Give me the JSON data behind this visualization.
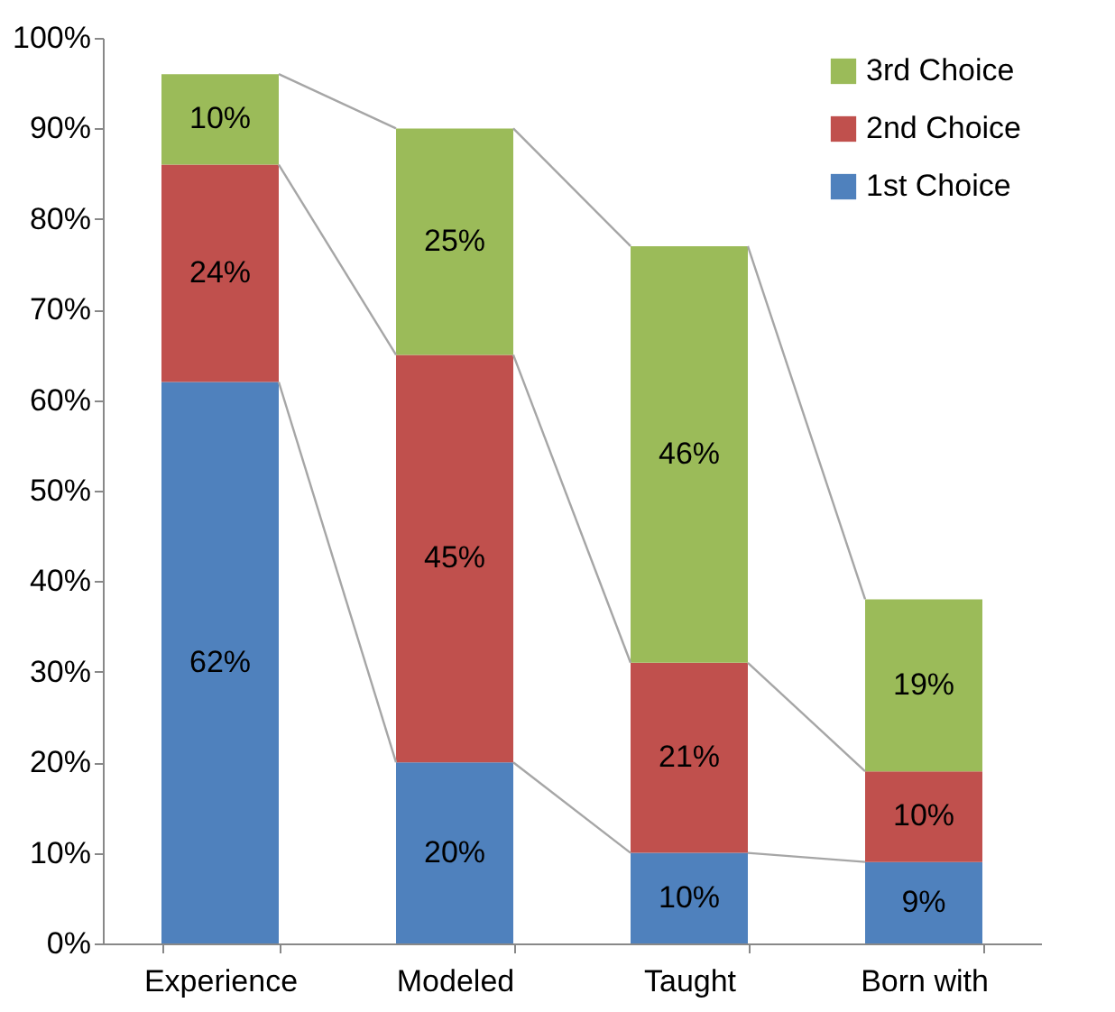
{
  "chart_data": {
    "type": "bar",
    "stacked": true,
    "legend": "top right",
    "grid": false,
    "categories": [
      "Experience",
      "Modeled",
      "Taught",
      "Born with"
    ],
    "series": [
      {
        "name": "1st Choice",
        "color": "#4f81bd",
        "values": [
          62,
          20,
          10,
          9
        ],
        "value_labels": [
          "62%",
          "20%",
          "10%",
          "9%"
        ]
      },
      {
        "name": "2nd Choice",
        "color": "#c0504d",
        "values": [
          24,
          45,
          21,
          10
        ],
        "value_labels": [
          "24%",
          "45%",
          "21%",
          "10%"
        ]
      },
      {
        "name": "3rd Choice",
        "color": "#9bbb59",
        "values": [
          10,
          25,
          46,
          19
        ],
        "value_labels": [
          "10%",
          "25%",
          "46%",
          "19%"
        ]
      }
    ],
    "ylim": [
      0,
      100
    ],
    "yticks": [
      {
        "value": 0,
        "label": "0%"
      },
      {
        "value": 10,
        "label": "10%"
      },
      {
        "value": 20,
        "label": "20%"
      },
      {
        "value": 30,
        "label": "30%"
      },
      {
        "value": 40,
        "label": "40%"
      },
      {
        "value": 50,
        "label": "50%"
      },
      {
        "value": 60,
        "label": "60%"
      },
      {
        "value": 70,
        "label": "70%"
      },
      {
        "value": 80,
        "label": "80%"
      },
      {
        "value": 90,
        "label": "90%"
      },
      {
        "value": 100,
        "label": "100%"
      }
    ]
  }
}
